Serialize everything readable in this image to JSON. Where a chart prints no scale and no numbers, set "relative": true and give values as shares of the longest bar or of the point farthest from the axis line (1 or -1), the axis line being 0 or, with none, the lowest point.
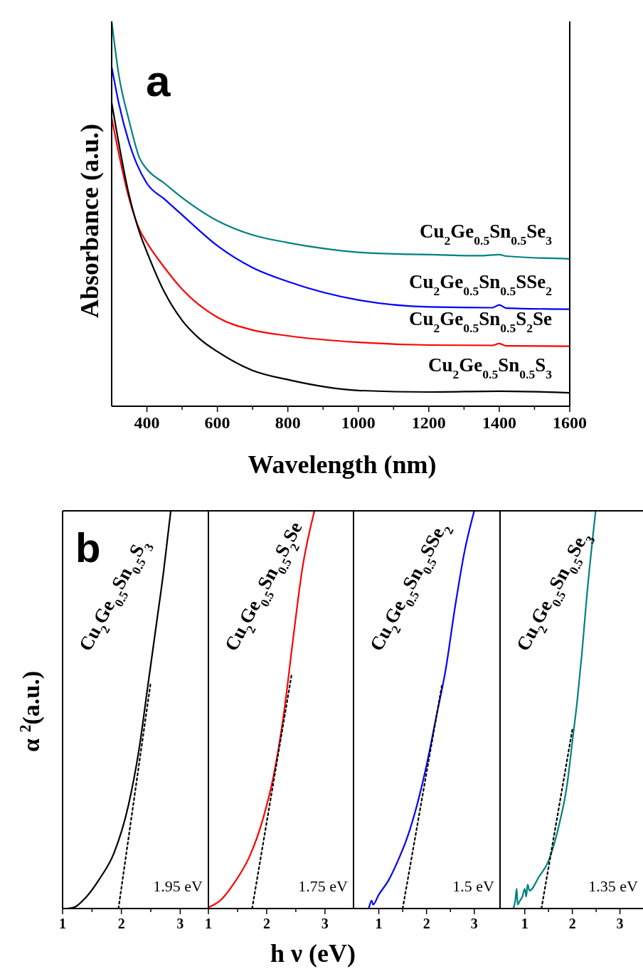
{
  "chart_data": [
    {
      "type": "line",
      "title": "a",
      "xlabel": "Wavelength (nm)",
      "ylabel": "Absorbance (a.u.)",
      "relative": true,
      "tick_labels": "x",
      "xlim": [
        300,
        1600
      ],
      "xticks": [
        400,
        {
          "value": 500,
          "label": null
        },
        600,
        {
          "value": 700,
          "label": null
        },
        800,
        {
          "value": 900,
          "label": null
        },
        1000,
        {
          "value": 1100,
          "label": null
        },
        1200,
        {
          "value": 1300,
          "label": null
        },
        1400,
        {
          "value": 1500,
          "label": null
        },
        1600
      ],
      "line_style": "solid",
      "series": [
        {
          "name": "Cu$_{2}$Ge$_{0.5}$Sn$_{0.5}$Se$_{3}$",
          "color": "#008080",
          "x": [
            300,
            320,
            350,
            380,
            400,
            450,
            500,
            600,
            700,
            800,
            900,
            1000,
            1140,
            1200,
            1350,
            1400,
            1420,
            1600
          ],
          "values": [
            1.0,
            0.862,
            0.74,
            0.643,
            0.616,
            0.579,
            0.542,
            0.482,
            0.445,
            0.425,
            0.41,
            0.4,
            0.395,
            0.394,
            0.391,
            0.394,
            0.39,
            0.383
          ]
        },
        {
          "name": "Cu$_{2}$Ge$_{0.5}$Sn$_{0.5}$SSe$_{2}$",
          "color": "#0000ff",
          "x": [
            300,
            320,
            350,
            400,
            450,
            500,
            600,
            700,
            800,
            1000,
            1200,
            1380,
            1400,
            1420,
            1600
          ],
          "values": [
            0.882,
            0.788,
            0.683,
            0.579,
            0.538,
            0.497,
            0.417,
            0.36,
            0.324,
            0.276,
            0.258,
            0.256,
            0.263,
            0.255,
            0.252
          ]
        },
        {
          "name": "Cu$_{2}$Ge$_{0.5}$Sn$_{0.5}$S$_{2}$Se",
          "color": "#ff0000",
          "x": [
            300,
            350,
            380,
            400,
            450,
            500,
            600,
            700,
            800,
            1000,
            1200,
            1380,
            1400,
            1420,
            1600
          ],
          "values": [
            0.749,
            0.538,
            0.457,
            0.425,
            0.36,
            0.304,
            0.231,
            0.198,
            0.183,
            0.166,
            0.159,
            0.158,
            0.163,
            0.157,
            0.156
          ]
        },
        {
          "name": "Cu$_{2}$Ge$_{0.5}$Sn$_{0.5}$S$_{3}$",
          "color": "#000000",
          "x": [
            300,
            350,
            380,
            400,
            450,
            500,
            550,
            600,
            700,
            800,
            1000,
            1200,
            1400,
            1600
          ],
          "values": [
            0.789,
            0.546,
            0.449,
            0.401,
            0.296,
            0.223,
            0.175,
            0.142,
            0.093,
            0.069,
            0.041,
            0.037,
            0.039,
            0.035
          ]
        }
      ]
    },
    {
      "type": "line",
      "title": "b",
      "ylabel": "α $^{2}$(a.u.)",
      "relative": true,
      "tick_labels": "x",
      "xlim": [
        1,
        3.48
      ],
      "xticks": [
        1,
        {
          "value": 1.5,
          "label": null
        },
        2,
        {
          "value": 2.5,
          "label": null
        },
        3
      ],
      "annotations": [
        "1.95 eV"
      ],
      "series": [
        {
          "name": "Cu$_{2}$Ge$_{0.5}$Sn$_{0.5}$S$_{3}$",
          "color": "#000000",
          "line_style": "solid",
          "x": [
            1.08,
            1.21,
            1.39,
            1.63,
            1.87,
            2.12,
            2.3,
            2.45,
            2.6,
            2.72,
            2.84
          ],
          "values": [
            0,
            0.004,
            0.027,
            0.075,
            0.138,
            0.26,
            0.4,
            0.56,
            0.72,
            0.85,
            1.0
          ]
        },
        {
          "color": "#000000",
          "line_style": "dotted",
          "x": [
            1.95,
            2.5
          ],
          "values": [
            0,
            0.57
          ]
        }
      ]
    },
    {
      "type": "line",
      "xlabel": "h ν (eV)",
      "relative": true,
      "tick_labels": "x",
      "xlim": [
        1,
        3.49
      ],
      "xticks": [
        1,
        {
          "value": 1.5,
          "label": null
        },
        2,
        {
          "value": 2.5,
          "label": null
        },
        3
      ],
      "annotations": [
        "1.75 eV"
      ],
      "series": [
        {
          "name": "Cu$_{2}$Ge$_{0.5}$Sn$_{0.5}$S$_{2}$Se",
          "color": "#ff0000",
          "line_style": "solid",
          "x": [
            1.02,
            1.21,
            1.45,
            1.7,
            1.94,
            2.12,
            2.3,
            2.45,
            2.61,
            2.82
          ],
          "values": [
            0.004,
            0.021,
            0.066,
            0.129,
            0.227,
            0.335,
            0.496,
            0.674,
            0.853,
            1.0
          ]
        },
        {
          "color": "#000000",
          "line_style": "dotted",
          "x": [
            1.75,
            2.43
          ],
          "values": [
            0,
            0.59
          ]
        }
      ]
    },
    {
      "type": "line",
      "relative": true,
      "tick_labels": "x",
      "xlim": [
        0.47,
        3.54
      ],
      "xticks": [
        1,
        {
          "value": 1.5,
          "label": null
        },
        2,
        {
          "value": 2.5,
          "label": null
        },
        3
      ],
      "annotations": [
        "1.5 eV"
      ],
      "series": [
        {
          "name": "Cu$_{2}$Ge$_{0.5}$Sn$_{0.5}$SSe$_{2}$",
          "color": "#0000ff",
          "line_style": "solid",
          "x": [
            0.79,
            0.85,
            0.88,
            1.0,
            1.2,
            1.4,
            1.6,
            1.8,
            2.0,
            2.2,
            2.4,
            2.6,
            2.8,
            3.0
          ],
          "values": [
            0,
            0.02,
            0.01,
            0.035,
            0.07,
            0.12,
            0.18,
            0.26,
            0.36,
            0.48,
            0.6,
            0.76,
            0.9,
            1.0
          ]
        },
        {
          "color": "#000000",
          "line_style": "dotted",
          "x": [
            1.5,
            2.32
          ],
          "values": [
            0,
            0.56
          ]
        }
      ]
    },
    {
      "type": "line",
      "relative": true,
      "tick_labels": "x",
      "xlim": [
        0.48,
        3.5
      ],
      "xticks": [
        1,
        {
          "value": 1.5,
          "label": null
        },
        2,
        {
          "value": 2.5,
          "label": null
        },
        3
      ],
      "annotations": [
        "1.35 eV"
      ],
      "series": [
        {
          "name": "Cu$_{2}$Ge$_{0.5}$Sn$_{0.5}$Se$_{3}$",
          "color": "#008080",
          "line_style": "solid",
          "x": [
            0.76,
            0.8,
            0.83,
            0.85,
            0.9,
            0.95,
            1.0,
            1.03,
            1.06,
            1.1,
            1.3,
            1.5,
            1.7,
            1.9,
            2.0,
            2.1,
            2.2,
            2.3,
            2.49
          ],
          "values": [
            0,
            0.02,
            0.05,
            0.01,
            0.02,
            0.03,
            0.05,
            0.03,
            0.06,
            0.045,
            0.08,
            0.12,
            0.2,
            0.32,
            0.42,
            0.52,
            0.64,
            0.78,
            1.0
          ]
        },
        {
          "color": "#000000",
          "line_style": "dotted",
          "x": [
            1.35,
            2.0
          ],
          "values": [
            0,
            0.45
          ]
        }
      ]
    }
  ]
}
